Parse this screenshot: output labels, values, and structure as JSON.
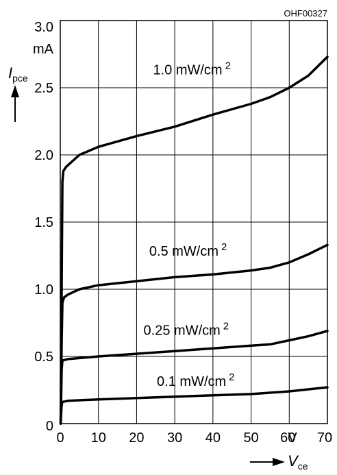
{
  "chart_data": {
    "type": "line",
    "figure_code": "OHF00327",
    "xlabel": {
      "symbol": "V",
      "subscript": "ce"
    },
    "ylabel": {
      "symbol": "I",
      "subscript": "pce"
    },
    "x_unit": "V",
    "y_unit": "mA",
    "xlim": [
      0,
      70
    ],
    "ylim": [
      0,
      3.0
    ],
    "x_ticks": [
      "0",
      "10",
      "20",
      "30",
      "40",
      "50",
      "60",
      "70"
    ],
    "y_ticks": [
      "0",
      "0.5",
      "1.0",
      "1.5",
      "2.0",
      "2.5",
      "3.0"
    ],
    "grid": true,
    "series": [
      {
        "name": "1.0 mW/cm 2",
        "values": [
          [
            0.1,
            0
          ],
          [
            0.35,
            1.0
          ],
          [
            0.55,
            1.8
          ],
          [
            0.8,
            1.88
          ],
          [
            1.5,
            1.91
          ],
          [
            5,
            2.0
          ],
          [
            10,
            2.06
          ],
          [
            20,
            2.14
          ],
          [
            30,
            2.21
          ],
          [
            40,
            2.3
          ],
          [
            50,
            2.38
          ],
          [
            55,
            2.43
          ],
          [
            60,
            2.5
          ],
          [
            65,
            2.59
          ],
          [
            70,
            2.73
          ]
        ]
      },
      {
        "name": "0.5 mW/cm 2",
        "values": [
          [
            0.1,
            0
          ],
          [
            0.35,
            0.6
          ],
          [
            0.55,
            0.9
          ],
          [
            1,
            0.94
          ],
          [
            2,
            0.96
          ],
          [
            5,
            1.0
          ],
          [
            10,
            1.03
          ],
          [
            20,
            1.06
          ],
          [
            30,
            1.09
          ],
          [
            40,
            1.11
          ],
          [
            50,
            1.14
          ],
          [
            55,
            1.16
          ],
          [
            60,
            1.2
          ],
          [
            65,
            1.26
          ],
          [
            70,
            1.33
          ]
        ]
      },
      {
        "name": "0.25 mW/cm 2",
        "values": [
          [
            0.1,
            0
          ],
          [
            0.35,
            0.4
          ],
          [
            0.55,
            0.47
          ],
          [
            2,
            0.48
          ],
          [
            10,
            0.5
          ],
          [
            20,
            0.52
          ],
          [
            30,
            0.54
          ],
          [
            40,
            0.56
          ],
          [
            50,
            0.58
          ],
          [
            55,
            0.59
          ],
          [
            60,
            0.62
          ],
          [
            65,
            0.65
          ],
          [
            70,
            0.69
          ]
        ]
      },
      {
        "name": "0.1 mW/cm 2",
        "values": [
          [
            0.1,
            0
          ],
          [
            0.3,
            0.12
          ],
          [
            0.5,
            0.16
          ],
          [
            2,
            0.17
          ],
          [
            10,
            0.18
          ],
          [
            20,
            0.19
          ],
          [
            30,
            0.2
          ],
          [
            40,
            0.21
          ],
          [
            50,
            0.22
          ],
          [
            60,
            0.24
          ],
          [
            65,
            0.255
          ],
          [
            70,
            0.27
          ]
        ]
      }
    ],
    "label_positions": [
      {
        "x": 34.5,
        "y": 2.6
      },
      {
        "x": 33.5,
        "y": 1.25
      },
      {
        "x": 33.0,
        "y": 0.66
      },
      {
        "x": 35.5,
        "y": 0.28
      }
    ]
  }
}
